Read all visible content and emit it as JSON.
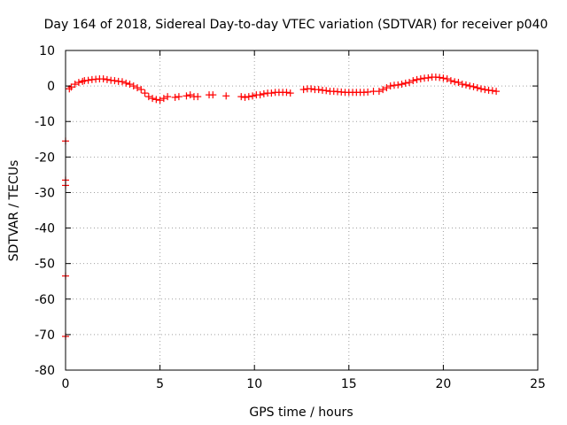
{
  "chart_data": {
    "type": "scatter",
    "title": "Day 164 of 2018, Sidereal Day-to-day VTEC variation (SDTVAR) for receiver p040",
    "xlabel": "GPS time / hours",
    "ylabel": "SDTVAR / TECUs",
    "xlim": [
      0,
      25
    ],
    "ylim": [
      -80,
      10
    ],
    "xticks": [
      0,
      5,
      10,
      15,
      20,
      25
    ],
    "yticks": [
      10,
      0,
      -10,
      -20,
      -30,
      -40,
      -50,
      -60,
      -70,
      -80
    ],
    "xtick_labels": [
      "0",
      "5",
      "10",
      "15",
      "20",
      "25"
    ],
    "ytick_labels": [
      "10",
      "0",
      "-10",
      "-20",
      "-30",
      "-40",
      "-50",
      "-60",
      "-70",
      "-80"
    ],
    "grid": true,
    "marker": "plus",
    "color": "#ff0000",
    "series": [
      {
        "name": "SDTVAR",
        "x": [
          0.0,
          0.0,
          0.0,
          0.0,
          0.0,
          0.2,
          0.3,
          0.5,
          0.7,
          0.9,
          1.0,
          1.2,
          1.4,
          1.6,
          1.8,
          2.0,
          2.2,
          2.4,
          2.6,
          2.8,
          3.0,
          3.2,
          3.4,
          3.6,
          3.8,
          4.0,
          4.2,
          4.4,
          4.6,
          4.8,
          5.0,
          5.2,
          5.4,
          5.8,
          6.0,
          6.4,
          6.6,
          6.8,
          7.0,
          7.6,
          7.8,
          8.5,
          9.3,
          9.5,
          9.7,
          9.9,
          10.1,
          10.3,
          10.5,
          10.7,
          10.9,
          11.1,
          11.3,
          11.5,
          11.7,
          11.9,
          12.6,
          12.8,
          13.0,
          13.2,
          13.4,
          13.6,
          13.8,
          14.0,
          14.2,
          14.4,
          14.6,
          14.8,
          15.0,
          15.2,
          15.4,
          15.6,
          15.8,
          16.0,
          16.3,
          16.6,
          16.8,
          17.0,
          17.2,
          17.4,
          17.6,
          17.8,
          18.0,
          18.2,
          18.4,
          18.6,
          18.8,
          19.0,
          19.2,
          19.4,
          19.6,
          19.8,
          20.0,
          20.2,
          20.4,
          20.6,
          20.8,
          21.0,
          21.2,
          21.4,
          21.6,
          21.8,
          22.0,
          22.2,
          22.4,
          22.6,
          22.8
        ],
        "y": [
          -15.5,
          -26.5,
          -28.0,
          -53.5,
          -70.5,
          -0.8,
          -0.3,
          0.5,
          1.0,
          1.3,
          1.5,
          1.6,
          1.8,
          1.9,
          2.0,
          2.0,
          1.8,
          1.6,
          1.5,
          1.3,
          1.2,
          0.8,
          0.5,
          0.0,
          -0.5,
          -1.0,
          -2.0,
          -3.0,
          -3.5,
          -3.8,
          -4.0,
          -3.5,
          -3.0,
          -3.2,
          -3.0,
          -2.8,
          -2.5,
          -3.0,
          -3.0,
          -2.5,
          -2.5,
          -2.8,
          -3.0,
          -3.2,
          -3.0,
          -2.8,
          -2.5,
          -2.5,
          -2.2,
          -2.0,
          -2.0,
          -1.8,
          -1.8,
          -1.8,
          -1.8,
          -2.0,
          -1.0,
          -0.8,
          -0.8,
          -1.0,
          -1.0,
          -1.2,
          -1.3,
          -1.5,
          -1.5,
          -1.6,
          -1.7,
          -1.8,
          -1.8,
          -1.8,
          -1.8,
          -1.8,
          -1.8,
          -1.7,
          -1.5,
          -1.5,
          -1.0,
          -0.5,
          0.0,
          0.2,
          0.3,
          0.5,
          0.8,
          1.0,
          1.5,
          1.8,
          2.0,
          2.2,
          2.3,
          2.5,
          2.5,
          2.4,
          2.2,
          2.0,
          1.5,
          1.2,
          1.0,
          0.5,
          0.3,
          0.0,
          -0.2,
          -0.5,
          -0.8,
          -1.0,
          -1.2,
          -1.3,
          -1.5
        ]
      }
    ]
  }
}
